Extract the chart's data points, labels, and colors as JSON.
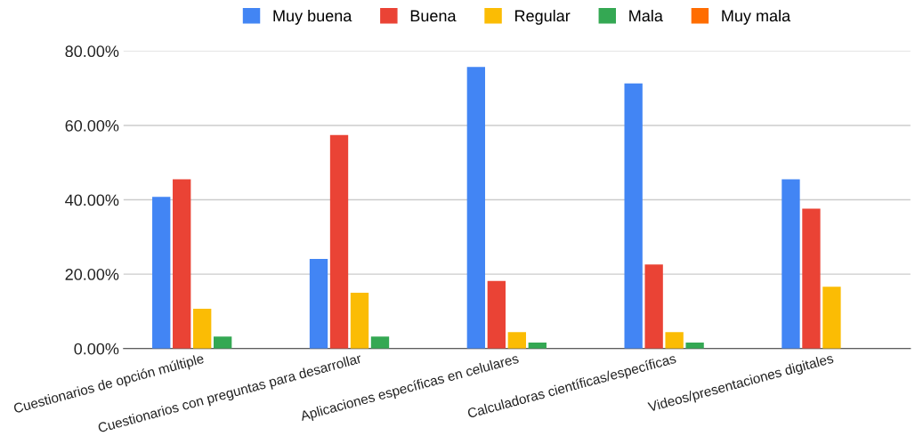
{
  "chart_data": {
    "type": "bar",
    "categories": [
      "Cuestionarios de opción múltiple",
      "Cuestionarios con preguntas para desarrollar",
      "Aplicaciones específicas en celulares",
      "Calculadoras científicas/específicas",
      "Videos/presentaciones digitales"
    ],
    "series": [
      {
        "name": "Muy buena",
        "color": "#4285f4",
        "values": [
          40.8,
          24.1,
          75.7,
          71.3,
          45.5
        ]
      },
      {
        "name": "Buena",
        "color": "#ea4335",
        "values": [
          45.5,
          57.4,
          18.2,
          22.6,
          37.6
        ]
      },
      {
        "name": "Regular",
        "color": "#fbbc04",
        "values": [
          10.7,
          15.0,
          4.4,
          4.4,
          16.6
        ]
      },
      {
        "name": "Mala",
        "color": "#34a853",
        "values": [
          3.2,
          3.2,
          1.6,
          1.6,
          0
        ]
      },
      {
        "name": "Muy mala",
        "color": "#ff6d01",
        "values": [
          0,
          0,
          0,
          0,
          0
        ]
      }
    ],
    "ylim": [
      0,
      80
    ],
    "yticks": [
      {
        "value": 0,
        "label": "0.00%"
      },
      {
        "value": 20,
        "label": "20.00%"
      },
      {
        "value": 40,
        "label": "40.00%"
      },
      {
        "value": 60,
        "label": "60.00%"
      },
      {
        "value": 80,
        "label": "80.00%"
      }
    ],
    "grid": "y",
    "legend": "top"
  }
}
